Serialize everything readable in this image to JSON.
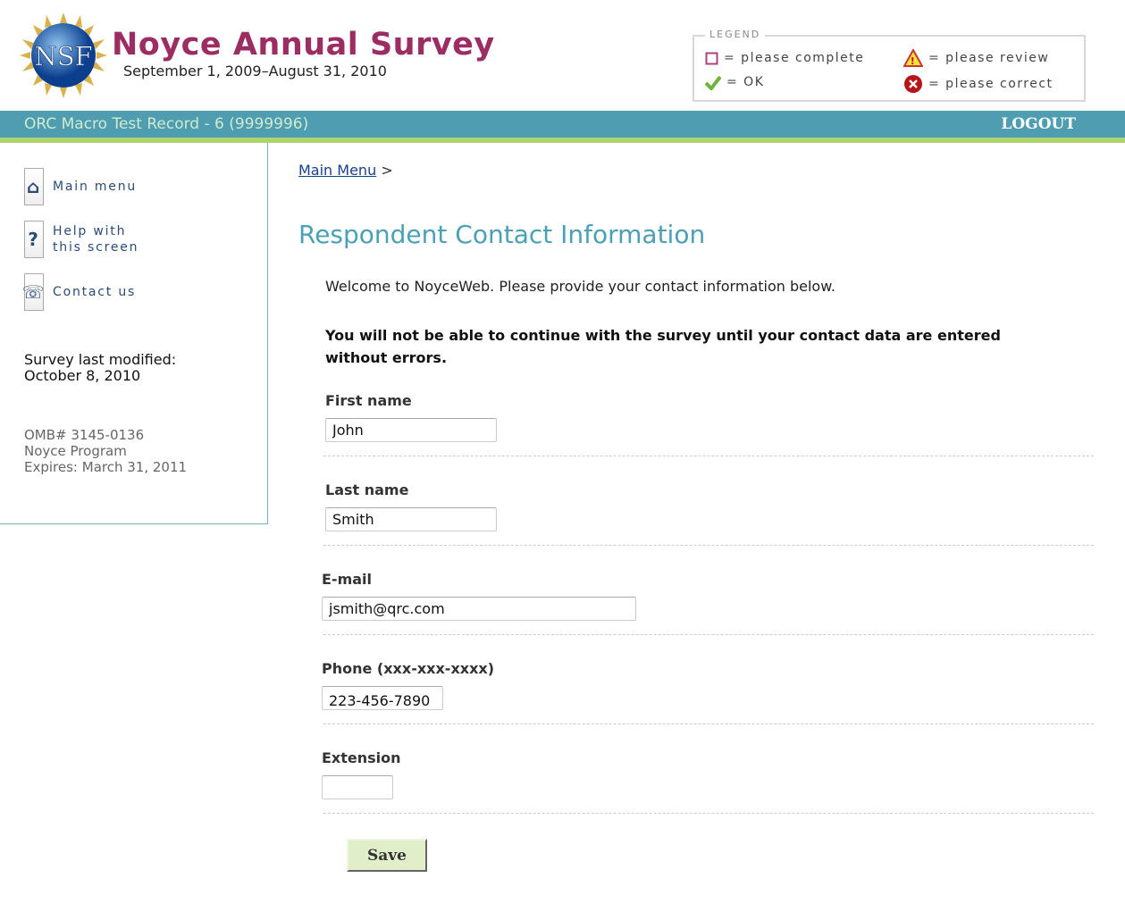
{
  "header": {
    "title": "Noyce Annual Survey",
    "subtitle": "September 1, 2009–August 31, 2010",
    "logo_text": "NSF"
  },
  "legend": {
    "title": "LEGEND",
    "items": [
      {
        "icon": "empty-square-icon",
        "label": "= please complete"
      },
      {
        "icon": "warning-triangle-icon",
        "label": "= please review"
      },
      {
        "icon": "checkmark-icon",
        "label": "= OK"
      },
      {
        "icon": "error-x-icon",
        "label": "= please correct"
      }
    ]
  },
  "topbar": {
    "record": "ORC Macro Test Record - 6 (9999996)",
    "logout": "LOGOUT"
  },
  "sidebar": {
    "items": [
      {
        "icon": "home-icon",
        "label": "Main menu"
      },
      {
        "icon": "help-icon",
        "label": "Help with this screen"
      },
      {
        "icon": "phone-icon",
        "label": "Contact us"
      }
    ],
    "modified_label": "Survey last modified:",
    "modified_date": "October 8, 2010",
    "omb": "OMB# 3145-0136",
    "program": "Noyce Program",
    "expires": "Expires: March 31, 2011"
  },
  "main": {
    "breadcrumb": {
      "link": "Main Menu",
      "sep": ">"
    },
    "heading": "Respondent Contact Information",
    "welcome": "Welcome to NoyceWeb. Please provide your contact information below.",
    "warning": "You will not be able to continue with the survey until your contact data are entered without errors.",
    "fields": [
      {
        "label": "First name",
        "value": "John"
      },
      {
        "label": "Last name",
        "value": "Smith"
      },
      {
        "label": "E-mail",
        "value": "jsmith@qrc.com"
      },
      {
        "label": "Phone (xxx-xxx-xxxx)",
        "value": "223-456-7890"
      },
      {
        "label": "Extension",
        "value": ""
      }
    ],
    "save": "Save"
  },
  "colors": {
    "title": "#9b2d62",
    "bar": "#4f9db0",
    "strip": "#acd36e",
    "heading": "#4ba0b5",
    "save_bg": "#e0efc9"
  }
}
